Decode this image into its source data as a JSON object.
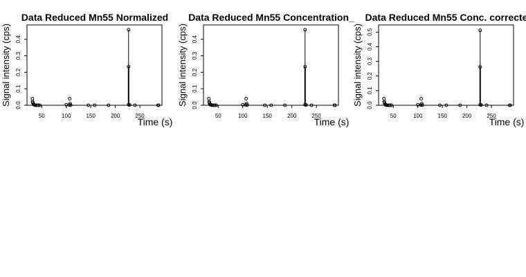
{
  "chart_data": [
    {
      "type": "scatter",
      "title": "Data Reduced Mn55 Normalized",
      "xlabel": "Time (s)",
      "ylabel": "Signal intensity (cps)",
      "xlim": [
        20,
        295
      ],
      "ylim": [
        0,
        0.47
      ],
      "xticks": [
        50,
        100,
        150,
        200,
        250
      ],
      "xtick_labels": [
        "50",
        "100",
        "150",
        "200",
        "250"
      ],
      "yticks": [
        0,
        0.1,
        0.2,
        0.3,
        0.4
      ],
      "ytick_labels": [
        "0.0",
        "0.1",
        "0.2",
        "0.3",
        "0.4"
      ],
      "spike_x": 227,
      "points": [
        [
          31,
          0.04
        ],
        [
          31.5,
          0.022
        ],
        [
          32,
          0.015
        ],
        [
          33,
          0.008
        ],
        [
          34,
          0.004
        ],
        [
          35,
          0.002
        ],
        [
          36,
          0.001
        ],
        [
          38,
          0.0
        ],
        [
          41,
          0.0
        ],
        [
          43,
          0.0
        ],
        [
          46,
          0.0
        ],
        [
          100,
          0.003
        ],
        [
          106,
          0.002
        ],
        [
          107,
          0.04
        ],
        [
          108,
          0.01
        ],
        [
          109,
          0.001
        ],
        [
          145,
          0.0
        ],
        [
          158,
          0.0
        ],
        [
          186,
          0.0
        ],
        [
          227,
          0.458
        ],
        [
          227,
          0.234
        ],
        [
          227,
          0.003
        ],
        [
          229,
          0.002
        ],
        [
          240,
          0.0
        ],
        [
          287,
          0.0
        ],
        [
          288,
          0.0
        ]
      ]
    },
    {
      "type": "scatter",
      "title": "Data Reduced Mn55 Concentration_",
      "xlabel": "Time (s)",
      "ylabel": "Signal intensity (cps)",
      "xlim": [
        20,
        295
      ],
      "ylim": [
        0,
        0.47
      ],
      "xticks": [
        50,
        100,
        150,
        200,
        250
      ],
      "xtick_labels": [
        "50",
        "100",
        "150",
        "200",
        "250"
      ],
      "yticks": [
        0,
        0.1,
        0.2,
        0.3,
        0.4
      ],
      "ytick_labels": [
        "0.0",
        "0.1",
        "0.2",
        "0.3",
        "0.4"
      ],
      "spike_x": 227,
      "points": [
        [
          31,
          0.04
        ],
        [
          31.5,
          0.022
        ],
        [
          32,
          0.015
        ],
        [
          33,
          0.008
        ],
        [
          34,
          0.004
        ],
        [
          35,
          0.002
        ],
        [
          36,
          0.001
        ],
        [
          38,
          0.0
        ],
        [
          41,
          0.0
        ],
        [
          43,
          0.0
        ],
        [
          46,
          0.0
        ],
        [
          100,
          0.003
        ],
        [
          106,
          0.002
        ],
        [
          107,
          0.04
        ],
        [
          108,
          0.01
        ],
        [
          109,
          0.001
        ],
        [
          145,
          0.0
        ],
        [
          158,
          0.0
        ],
        [
          186,
          0.0
        ],
        [
          227,
          0.458
        ],
        [
          227,
          0.234
        ],
        [
          227,
          0.003
        ],
        [
          229,
          0.002
        ],
        [
          240,
          0.0
        ],
        [
          287,
          0.0
        ],
        [
          288,
          0.0
        ]
      ]
    },
    {
      "type": "scatter",
      "title": "Data Reduced Mn55 Conc. correcte",
      "xlabel": "Time (s)",
      "ylabel": "Signal intensity (cps)",
      "xlim": [
        20,
        295
      ],
      "ylim": [
        0,
        0.53
      ],
      "xticks": [
        50,
        100,
        150,
        200,
        250
      ],
      "xtick_labels": [
        "50",
        "100",
        "150",
        "200",
        "250"
      ],
      "yticks": [
        0,
        0.1,
        0.2,
        0.3,
        0.4,
        0.5
      ],
      "ytick_labels": [
        "0.0",
        "0.1",
        "0.2",
        "0.3",
        "0.4",
        "0.5"
      ],
      "spike_x": 227,
      "points": [
        [
          31,
          0.045
        ],
        [
          31.5,
          0.025
        ],
        [
          32,
          0.017
        ],
        [
          33,
          0.009
        ],
        [
          34,
          0.004
        ],
        [
          35,
          0.002
        ],
        [
          36,
          0.001
        ],
        [
          38,
          0.0
        ],
        [
          41,
          0.0
        ],
        [
          43,
          0.0
        ],
        [
          46,
          0.0
        ],
        [
          100,
          0.003
        ],
        [
          106,
          0.002
        ],
        [
          107,
          0.045
        ],
        [
          108,
          0.011
        ],
        [
          109,
          0.001
        ],
        [
          145,
          0.0
        ],
        [
          158,
          0.0
        ],
        [
          186,
          0.0
        ],
        [
          227,
          0.512
        ],
        [
          227,
          0.262
        ],
        [
          227,
          0.003
        ],
        [
          229,
          0.002
        ],
        [
          240,
          0.0
        ],
        [
          287,
          0.0
        ],
        [
          288,
          0.0
        ]
      ]
    }
  ]
}
